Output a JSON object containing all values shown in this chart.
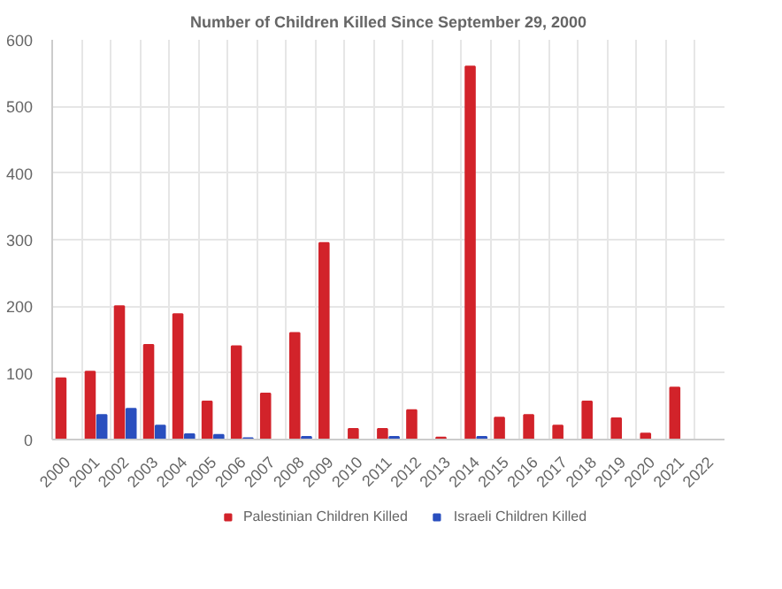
{
  "chart_data": {
    "type": "bar",
    "title": "Number of Children Killed Since September 29, 2000",
    "categories": [
      "2000",
      "2001",
      "2002",
      "2003",
      "2004",
      "2005",
      "2006",
      "2007",
      "2008",
      "2009",
      "2010",
      "2011",
      "2012",
      "2013",
      "2014",
      "2015",
      "2016",
      "2017",
      "2018",
      "2019",
      "2020",
      "2021",
      "2022"
    ],
    "series": [
      {
        "name": "Palestinian Children Killed",
        "color": "#d2232a",
        "values": [
          92,
          102,
          200,
          142,
          188,
          57,
          140,
          69,
          160,
          295,
          16,
          16,
          44,
          3,
          560,
          33,
          37,
          21,
          57,
          32,
          9,
          78,
          null
        ]
      },
      {
        "name": "Israeli Children Killed",
        "color": "#2a4fbf",
        "values": [
          null,
          37,
          46,
          21,
          8,
          7,
          2,
          null,
          4,
          null,
          null,
          4,
          null,
          null,
          4,
          null,
          null,
          null,
          null,
          null,
          null,
          null,
          null
        ]
      }
    ],
    "ylim": [
      0,
      600
    ],
    "yticks": [
      0,
      100,
      200,
      300,
      400,
      500,
      600
    ],
    "grid": true,
    "legend": "bottom"
  }
}
